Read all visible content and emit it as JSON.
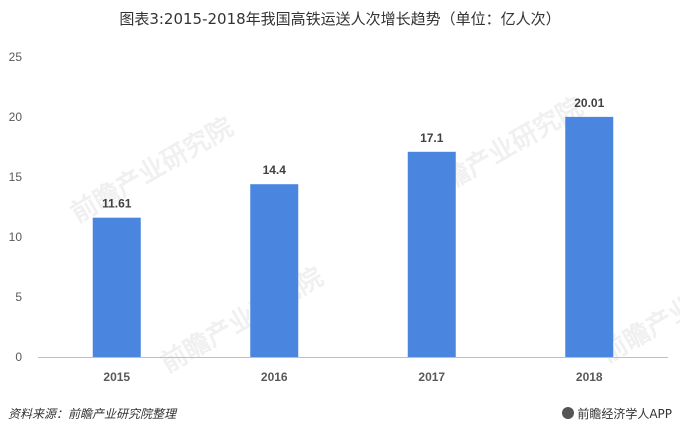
{
  "chart_data": {
    "type": "bar",
    "title": "图表3:2015-2018年我国高铁运送人次增长趋势（单位：亿人次）",
    "categories": [
      "2015",
      "2016",
      "2017",
      "2018"
    ],
    "values": [
      11.61,
      14.4,
      17.1,
      20.01
    ],
    "data_labels": [
      "11.61",
      "14.4",
      "17.1",
      "20.01"
    ],
    "xlabel": "",
    "ylabel": "",
    "ylim": [
      0,
      25
    ],
    "yticks": [
      "0",
      "5",
      "10",
      "15",
      "20",
      "25"
    ],
    "grid": false,
    "legend": "none",
    "bar_color": "#4A86E0"
  },
  "footer": {
    "source": "资料来源：前瞻产业研究院整理",
    "brand": "前瞻经济学人APP"
  },
  "watermark": {
    "text": "前瞻产业研究院"
  }
}
